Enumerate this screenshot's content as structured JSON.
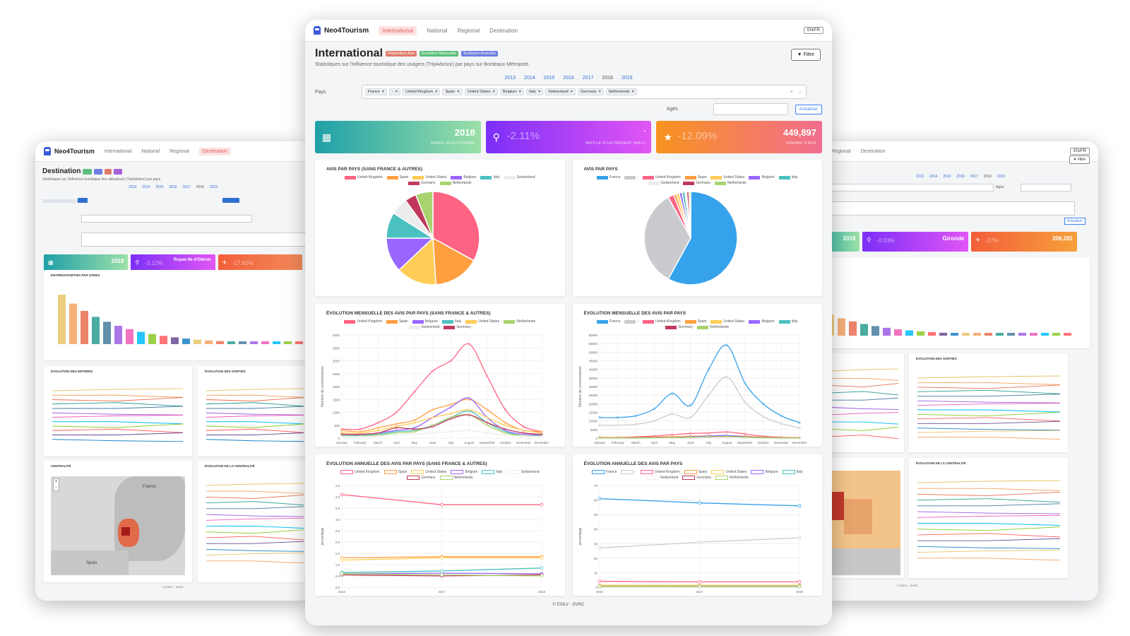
{
  "left": {
    "brand": "Neo4Tourism",
    "nav": [
      "International",
      "National",
      "Regional",
      "Destination"
    ],
    "title": "Destination",
    "subtitle": "Statistiques sur l'influence touristique des utilisateurs (TripAdvisor) par pays",
    "years": [
      "2013",
      "2014",
      "2015",
      "2016",
      "2017",
      "2018",
      "2019"
    ],
    "kpis": [
      {
        "value": "2018",
        "ghost": ""
      },
      {
        "value": "Royan Ile d'Oléron",
        "ghost": "-3.12%"
      },
      {
        "value": "",
        "ghost": "-17.92%"
      }
    ],
    "card_titles": [
      "ENTRÉES/SORTIES PAR ZONES",
      "ÉVOLUTION DES ENTRÉES",
      "ÉVOLUTION DES SORTIES",
      "CENTRALITÉ",
      "ÉVOLUTION DE LA CENTRALITÉ"
    ],
    "map_labels": [
      "France",
      "Spain"
    ],
    "footer": "© ESILV · DVRC"
  },
  "right": {
    "nav": [
      "Regional",
      "Destination"
    ],
    "lang": "EN/FR",
    "filter": "Filtre",
    "years": [
      "2013",
      "2014",
      "2015",
      "2016",
      "2017",
      "2018",
      "2019"
    ],
    "ages_label": "Ages",
    "update": "Actualiser",
    "kpis": [
      {
        "value": "2018",
        "ghost": ""
      },
      {
        "value": "Gironde",
        "ghost": "-0.03%"
      },
      {
        "value": "206,281",
        "ghost": "-27%"
      }
    ],
    "card_titles": [
      "ÉVOLUTION DES SORTIES",
      "ÉVOLUTION DE LA CENTRALITÉ"
    ],
    "footer": "© ESILV · DVRC"
  },
  "main": {
    "brand": "Neo4Tourism",
    "nav": {
      "tabs": [
        "International",
        "National",
        "Regional",
        "Destination"
      ],
      "active": "International",
      "lang": "EN/FR"
    },
    "title": "International",
    "badges": [
      {
        "label": "Répartition Avis",
        "color": "#e07b6a"
      },
      {
        "label": "Évolution Mensuelle",
        "color": "#5bbf7a"
      },
      {
        "label": "Évolution Annuelle",
        "color": "#6d7fe0"
      }
    ],
    "subtitle": "Statistiques sur l'influence touristique des usagers (TripAdvisor) par pays sur Bordeaux Métropole.",
    "filter_button": "Filtre",
    "years": [
      "2013",
      "2014",
      "2015",
      "2016",
      "2017",
      "2018",
      "2019"
    ],
    "selected_year": "2018",
    "pays_label": "Pays",
    "pays_chips": [
      "France",
      "-",
      "United Kingdom",
      "Spain",
      "United States",
      "Belgium",
      "Italy",
      "Switzerland",
      "Germany",
      "Netherlands"
    ],
    "ages_label": "Ages",
    "ages_value": "-",
    "update_button": "Actualiser",
    "kpis": [
      {
        "value": "2018",
        "ghost": "",
        "label": "ANNÉE SÉLECTIONNÉE",
        "icon": "calendar-icon",
        "gradient": [
          "#1fa0a8",
          "#9be0a8"
        ]
      },
      {
        "value": "-",
        "ghost": "-2.11%",
        "label": "PAYS LE PLUS PRÉSENT (A/A-1)",
        "icon": "map-pin-icon",
        "gradient": [
          "#7b2ff7",
          "#e255f5"
        ]
      },
      {
        "value": "449,897",
        "ghost": "-12.09%",
        "label": "NOMBRE D'AVIS",
        "icon": "star-icon",
        "gradient": [
          "#f7931e",
          "#f26d8f"
        ]
      }
    ],
    "footer": "© ESILV · DVRC"
  },
  "colors": {
    "France": "#36a2eb",
    "-": "#c9cbcf",
    "United Kingdom": "#ff6384",
    "Spain": "#ff9f40",
    "United States": "#ffcd56",
    "Belgium": "#9966ff",
    "Italy": "#4bc0c0",
    "Switzerland": "#ececec",
    "Germany": "#c0395b",
    "Netherlands": "#a8d46f"
  },
  "chart_data": [
    {
      "type": "pie",
      "title": "AVIS PAR PAYS (SANS FRANCE & AUTRES)",
      "labels": [
        "United Kingdom",
        "Spain",
        "United States",
        "Belgium",
        "Italy",
        "Switzerland",
        "Germany",
        "Netherlands"
      ],
      "values": [
        33,
        16,
        14,
        12,
        9,
        6,
        4,
        6
      ]
    },
    {
      "type": "pie",
      "title": "AVIS PAR PAYS",
      "labels": [
        "France",
        "-",
        "United Kingdom",
        "Spain",
        "United States",
        "Belgium",
        "Italy",
        "Switzerland",
        "Germany",
        "Netherlands"
      ],
      "values": [
        58,
        34,
        2,
        1,
        1,
        1,
        1,
        0.6,
        0.8,
        0.6
      ]
    },
    {
      "type": "line",
      "title": "ÉVOLUTION MENSUELLE DES AVIS PAR PAYS (SANS FRANCE & AUTRES)",
      "ylabel": "Nombre de commentaires",
      "x": [
        "January",
        "February",
        "March",
        "April",
        "May",
        "June",
        "July",
        "August",
        "September",
        "October",
        "November",
        "December"
      ],
      "ylim": [
        0,
        4000
      ],
      "yticks": [
        0,
        500,
        1000,
        1500,
        2000,
        2500,
        3000,
        3500,
        4000
      ],
      "series": [
        {
          "name": "United Kingdom",
          "values": [
            350,
            350,
            600,
            1000,
            1800,
            2600,
            3000,
            3650,
            2400,
            1100,
            450,
            250
          ]
        },
        {
          "name": "Spain",
          "values": [
            300,
            250,
            400,
            550,
            700,
            1100,
            1300,
            1500,
            1100,
            600,
            300,
            250
          ]
        },
        {
          "name": "Belgium",
          "values": [
            150,
            130,
            200,
            300,
            400,
            800,
            1200,
            1550,
            800,
            300,
            150,
            120
          ]
        },
        {
          "name": "Italy",
          "values": [
            100,
            100,
            150,
            250,
            300,
            500,
            800,
            1050,
            600,
            250,
            100,
            100
          ]
        },
        {
          "name": "United States",
          "values": [
            200,
            200,
            300,
            450,
            600,
            800,
            950,
            1100,
            800,
            500,
            300,
            200
          ]
        },
        {
          "name": "Netherlands",
          "values": [
            80,
            80,
            120,
            200,
            250,
            500,
            800,
            900,
            500,
            200,
            100,
            80
          ]
        },
        {
          "name": "Switzerland",
          "values": [
            60,
            60,
            80,
            120,
            150,
            200,
            250,
            300,
            200,
            120,
            80,
            60
          ]
        },
        {
          "name": "Germany",
          "values": [
            150,
            150,
            200,
            400,
            350,
            450,
            750,
            900,
            600,
            350,
            200,
            150
          ]
        }
      ]
    },
    {
      "type": "line",
      "title": "ÉVOLUTION MENSUELLE DES AVIS PAR PAYS",
      "ylabel": "Nombre de commentaires",
      "x": [
        "January",
        "February",
        "March",
        "April",
        "May",
        "June",
        "July",
        "August",
        "September",
        "October",
        "November",
        "December"
      ],
      "ylim": [
        0,
        60000
      ],
      "yticks": [
        0,
        5000,
        10000,
        15000,
        20000,
        25000,
        30000,
        35000,
        40000,
        45000,
        50000,
        55000,
        60000
      ],
      "series": [
        {
          "name": "France",
          "values": [
            12000,
            12000,
            13000,
            17000,
            26000,
            19000,
            40000,
            54000,
            32000,
            20000,
            13000,
            9000
          ]
        },
        {
          "name": "-",
          "values": [
            7500,
            7500,
            8000,
            10000,
            14000,
            12000,
            25000,
            35500,
            21000,
            12500,
            8500,
            6000
          ]
        },
        {
          "name": "United Kingdom",
          "values": [
            400,
            400,
            700,
            1200,
            2000,
            2700,
            3000,
            3600,
            2400,
            1100,
            500,
            300
          ]
        },
        {
          "name": "Spain",
          "values": [
            300,
            300,
            400,
            600,
            800,
            1100,
            1300,
            1500,
            1100,
            600,
            300,
            200
          ]
        },
        {
          "name": "United States",
          "values": [
            200,
            200,
            300,
            400,
            600,
            800,
            900,
            1100,
            800,
            500,
            300,
            200
          ]
        },
        {
          "name": "Belgium",
          "values": [
            150,
            150,
            200,
            300,
            400,
            800,
            1200,
            1500,
            800,
            300,
            150,
            100
          ]
        },
        {
          "name": "Italy",
          "values": [
            100,
            100,
            150,
            250,
            300,
            500,
            800,
            1000,
            600,
            250,
            100,
            100
          ]
        },
        {
          "name": "Germany",
          "values": [
            150,
            150,
            200,
            400,
            350,
            450,
            750,
            900,
            600,
            350,
            200,
            150
          ]
        },
        {
          "name": "Netherlands",
          "values": [
            80,
            80,
            100,
            200,
            250,
            500,
            800,
            900,
            500,
            200,
            100,
            80
          ]
        }
      ]
    },
    {
      "type": "line",
      "title": "ÉVOLUTION ANNUELLE DES AVIS PAR PAYS (SANS FRANCE & AUTRES)",
      "ylabel": "percentage",
      "x": [
        "2016",
        "2017",
        "2018"
      ],
      "ylim": [
        0,
        4.5
      ],
      "yticks": [
        0,
        0.5,
        1.0,
        1.5,
        2.0,
        2.5,
        3.0,
        3.5,
        4.0,
        4.5
      ],
      "series": [
        {
          "name": "United Kingdom",
          "values": [
            4.1,
            3.65,
            3.65
          ]
        },
        {
          "name": "Spain",
          "values": [
            1.3,
            1.35,
            1.35
          ]
        },
        {
          "name": "United States",
          "values": [
            1.2,
            1.3,
            1.3
          ]
        },
        {
          "name": "Belgium",
          "values": [
            0.6,
            0.62,
            0.6
          ]
        },
        {
          "name": "Italy",
          "values": [
            0.65,
            0.72,
            0.85
          ]
        },
        {
          "name": "Switzerland",
          "values": [
            0.5,
            0.5,
            0.5
          ]
        },
        {
          "name": "Germany",
          "values": [
            0.55,
            0.5,
            0.55
          ]
        },
        {
          "name": "Netherlands",
          "values": [
            0.6,
            0.55,
            0.5
          ]
        }
      ]
    },
    {
      "type": "line",
      "title": "ÉVOLUTION ANNUELLE DES AVIS PAR PAYS",
      "ylabel": "percentage",
      "x": [
        "2016",
        "2017",
        "2018"
      ],
      "ylim": [
        0,
        70
      ],
      "yticks": [
        0,
        10,
        20,
        30,
        40,
        50,
        60,
        70
      ],
      "series": [
        {
          "name": "France",
          "values": [
            61,
            58,
            56
          ]
        },
        {
          "name": "-",
          "values": [
            27,
            31,
            34
          ]
        },
        {
          "name": "United Kingdom",
          "values": [
            4.1,
            3.7,
            3.7
          ]
        },
        {
          "name": "Spain",
          "values": [
            1.3,
            1.3,
            1.3
          ]
        },
        {
          "name": "United States",
          "values": [
            1.2,
            1.3,
            1.3
          ]
        },
        {
          "name": "Belgium",
          "values": [
            0.6,
            0.6,
            0.6
          ]
        },
        {
          "name": "Italy",
          "values": [
            0.7,
            0.7,
            0.8
          ]
        },
        {
          "name": "Switzerland",
          "values": [
            0.5,
            0.5,
            0.5
          ]
        },
        {
          "name": "Germany",
          "values": [
            0.5,
            0.5,
            0.5
          ]
        },
        {
          "name": "Netherlands",
          "values": [
            0.6,
            0.5,
            0.5
          ]
        }
      ]
    }
  ]
}
